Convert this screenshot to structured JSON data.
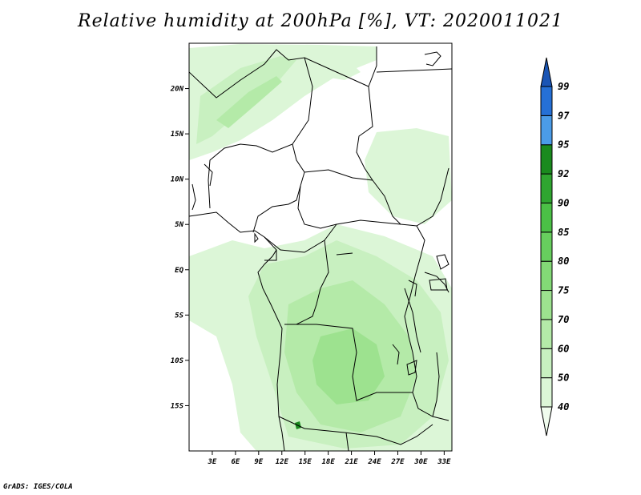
{
  "title": "Relative humidity at 200hPa [%], VT: 2020011021",
  "credit": "GrADS: IGES/COLA",
  "map": {
    "lon_range": [
      0,
      34
    ],
    "lat_range": [
      -20,
      25
    ],
    "lat_ticks": [
      {
        "value": 20,
        "label": "20N"
      },
      {
        "value": 15,
        "label": "15N"
      },
      {
        "value": 10,
        "label": "10N"
      },
      {
        "value": 5,
        "label": "5N"
      },
      {
        "value": 0,
        "label": "EQ"
      },
      {
        "value": -5,
        "label": "5S"
      },
      {
        "value": -10,
        "label": "10S"
      },
      {
        "value": -15,
        "label": "15S"
      }
    ],
    "lon_ticks": [
      {
        "value": 3,
        "label": "3E"
      },
      {
        "value": 6,
        "label": "6E"
      },
      {
        "value": 9,
        "label": "9E"
      },
      {
        "value": 12,
        "label": "12E"
      },
      {
        "value": 15,
        "label": "15E"
      },
      {
        "value": 18,
        "label": "18E"
      },
      {
        "value": 21,
        "label": "21E"
      },
      {
        "value": 24,
        "label": "24E"
      },
      {
        "value": 27,
        "label": "27E"
      },
      {
        "value": 30,
        "label": "30E"
      },
      {
        "value": 33,
        "label": "33E"
      }
    ]
  },
  "colorbar": {
    "levels": [
      "40",
      "50",
      "60",
      "70",
      "75",
      "80",
      "85",
      "90",
      "92",
      "95",
      "97",
      "99"
    ],
    "colors": [
      "#f0fcee",
      "#dcf6d7",
      "#c8f0c0",
      "#b4eaa8",
      "#9de28f",
      "#83d976",
      "#67ce5e",
      "#4bc046",
      "#2fa530",
      "#1a8a1e",
      "#4b9ce8",
      "#2570d6",
      "#1a55b5"
    ]
  },
  "colors": {
    "accent_green": "#c8f0c0",
    "accent_blue": "#2570d6"
  }
}
